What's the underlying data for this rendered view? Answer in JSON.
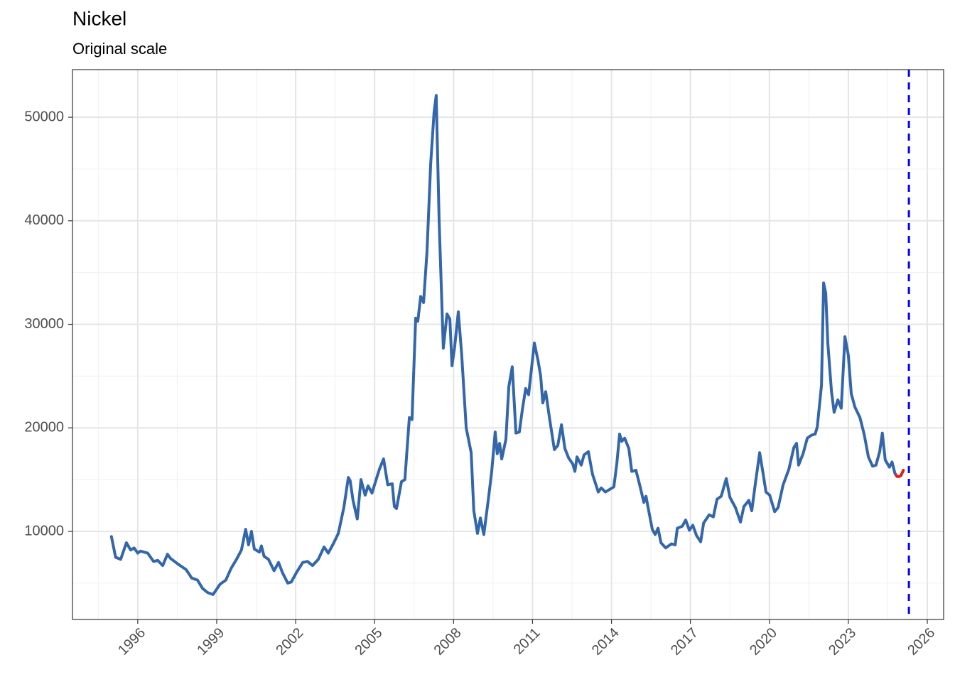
{
  "chart_data": {
    "type": "line",
    "title": "Nickel",
    "subtitle": "Original scale",
    "xlim": [
      1993.52,
      2026.62
    ],
    "ylim": [
      1492,
      54600
    ],
    "xticks": [
      1996,
      1999,
      2002,
      2005,
      2008,
      2011,
      2014,
      2017,
      2020,
      2023,
      2026
    ],
    "x_minor_ticks": [
      1994.5,
      1997.5,
      2000.5,
      2003.5,
      2006.5,
      2009.5,
      2012.5,
      2015.5,
      2018.5,
      2021.5,
      2024.5
    ],
    "yticks": [
      10000,
      20000,
      30000,
      40000,
      50000
    ],
    "y_minor_ticks": [
      5000,
      15000,
      25000,
      35000,
      45000
    ],
    "grid": true,
    "vline": {
      "value": 2025.3,
      "color": "#0000ff"
    },
    "series": [
      {
        "color": "#e41a1c",
        "x": [
          2024.77,
          2024.85,
          2024.93,
          2025.0,
          2025.09
        ],
        "values": [
          15600,
          15300,
          15300,
          15400,
          15900
        ]
      },
      {
        "color": "#3366aa",
        "x": [
          1995.0,
          1995.16,
          1995.35,
          1995.57,
          1995.73,
          1995.86,
          1996.0,
          1996.1,
          1996.38,
          1996.6,
          1996.76,
          1996.95,
          1997.13,
          1997.24,
          1997.5,
          1997.84,
          1998.05,
          1998.27,
          1998.46,
          1998.65,
          1998.86,
          1998.94,
          1999.13,
          1999.35,
          1999.54,
          1999.75,
          1999.94,
          2000.1,
          2000.21,
          2000.32,
          2000.43,
          2000.62,
          2000.7,
          2000.8,
          2000.97,
          2001.18,
          2001.35,
          2001.5,
          2001.7,
          2001.83,
          2002.05,
          2002.27,
          2002.45,
          2002.64,
          2002.86,
          2003.08,
          2003.24,
          2003.45,
          2003.62,
          2003.83,
          2004.0,
          2004.07,
          2004.18,
          2004.34,
          2004.48,
          2004.64,
          2004.75,
          2004.9,
          2005.07,
          2005.18,
          2005.34,
          2005.5,
          2005.67,
          2005.75,
          2005.83,
          2006.02,
          2006.15,
          2006.32,
          2006.42,
          2006.56,
          2006.64,
          2006.75,
          2006.86,
          2006.99,
          2007.13,
          2007.26,
          2007.34,
          2007.45,
          2007.61,
          2007.75,
          2007.86,
          2007.94,
          2008.04,
          2008.18,
          2008.31,
          2008.48,
          2008.67,
          2008.77,
          2008.91,
          2009.02,
          2009.15,
          2009.34,
          2009.45,
          2009.58,
          2009.66,
          2009.75,
          2009.83,
          2009.99,
          2010.1,
          2010.23,
          2010.37,
          2010.5,
          2010.61,
          2010.74,
          2010.85,
          2011.07,
          2011.21,
          2011.31,
          2011.39,
          2011.5,
          2011.64,
          2011.83,
          2011.96,
          2012.1,
          2012.23,
          2012.37,
          2012.53,
          2012.61,
          2012.69,
          2012.85,
          2012.96,
          2013.12,
          2013.28,
          2013.5,
          2013.61,
          2013.77,
          2014.09,
          2014.2,
          2014.31,
          2014.39,
          2014.5,
          2014.66,
          2014.77,
          2014.93,
          2015.07,
          2015.23,
          2015.31,
          2015.42,
          2015.55,
          2015.66,
          2015.77,
          2015.88,
          2016.06,
          2016.28,
          2016.42,
          2016.5,
          2016.69,
          2016.82,
          2016.96,
          2017.09,
          2017.23,
          2017.39,
          2017.5,
          2017.71,
          2017.87,
          2018.01,
          2018.17,
          2018.36,
          2018.5,
          2018.71,
          2018.9,
          2019.03,
          2019.22,
          2019.33,
          2019.47,
          2019.63,
          2019.76,
          2019.87,
          2020.01,
          2020.2,
          2020.33,
          2020.52,
          2020.74,
          2020.93,
          2021.03,
          2021.11,
          2021.28,
          2021.44,
          2021.6,
          2021.74,
          2021.82,
          2021.98,
          2022.06,
          2022.14,
          2022.22,
          2022.36,
          2022.46,
          2022.6,
          2022.73,
          2022.87,
          2023.0,
          2023.11,
          2023.25,
          2023.44,
          2023.6,
          2023.76,
          2023.92,
          2024.05,
          2024.19,
          2024.29,
          2024.4,
          2024.56,
          2024.66,
          2024.77
        ],
        "values": [
          9500,
          7500,
          7300,
          8900,
          8200,
          8400,
          7900,
          8100,
          7900,
          7100,
          7200,
          6700,
          7800,
          7400,
          6900,
          6300,
          5500,
          5300,
          4500,
          4100,
          3900,
          4200,
          4900,
          5300,
          6400,
          7300,
          8200,
          10200,
          8700,
          10000,
          8300,
          8000,
          8600,
          7600,
          7300,
          6200,
          7000,
          6000,
          5000,
          5100,
          6100,
          7000,
          7100,
          6700,
          7300,
          8500,
          7900,
          8900,
          9800,
          12300,
          15200,
          14900,
          13000,
          11200,
          15000,
          13500,
          14400,
          13700,
          15100,
          16000,
          17000,
          14500,
          14600,
          12400,
          12200,
          14800,
          15000,
          21000,
          20800,
          30600,
          30300,
          32700,
          32100,
          37000,
          45500,
          50500,
          52100,
          40000,
          27700,
          31000,
          30500,
          26000,
          27800,
          31200,
          27000,
          20000,
          17600,
          12000,
          9800,
          11300,
          9700,
          13500,
          15800,
          19600,
          17500,
          18500,
          17000,
          18900,
          24000,
          25900,
          19500,
          19600,
          21700,
          23800,
          23200,
          28200,
          26500,
          25000,
          22400,
          23500,
          21000,
          17900,
          18300,
          20300,
          18000,
          17100,
          16500,
          15800,
          17200,
          16400,
          17400,
          17700,
          15500,
          13800,
          14200,
          13800,
          14300,
          16500,
          19400,
          18700,
          19000,
          18000,
          15800,
          15900,
          14500,
          12800,
          13400,
          11900,
          10200,
          9700,
          10300,
          8900,
          8400,
          8800,
          8700,
          10300,
          10500,
          11100,
          10100,
          10600,
          9600,
          9000,
          10800,
          11600,
          11400,
          13100,
          13400,
          15100,
          13300,
          12300,
          10900,
          12400,
          13000,
          12000,
          14700,
          17600,
          15600,
          13800,
          13500,
          11900,
          12300,
          14500,
          16000,
          18100,
          18500,
          16400,
          17500,
          19000,
          19300,
          19400,
          20100,
          24100,
          34000,
          33000,
          28200,
          23500,
          21500,
          22700,
          21900,
          28800,
          27000,
          23300,
          22000,
          21000,
          19400,
          17200,
          16300,
          16400,
          17700,
          19500,
          16900,
          16200,
          16700,
          15600
        ]
      }
    ]
  }
}
